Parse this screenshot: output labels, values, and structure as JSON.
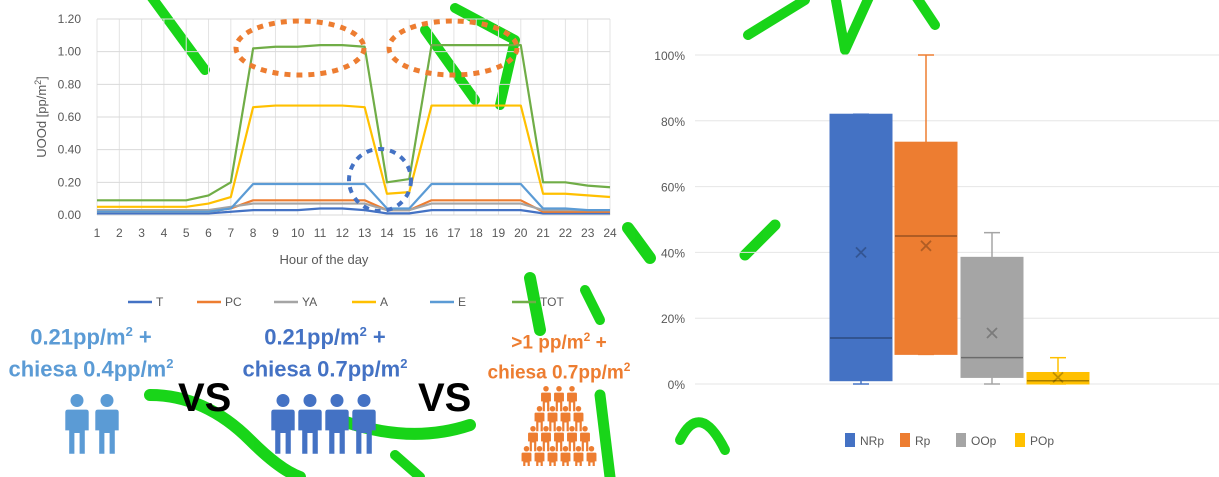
{
  "chart_data": [
    {
      "type": "line",
      "title": "",
      "xlabel": "Hour of the day",
      "ylabel": "UOOd [pp/m²]",
      "ylabel_parts": [
        "UOOd [pp/m",
        "2",
        "]"
      ],
      "ylim": [
        0,
        1.2
      ],
      "yticks": [
        "0.00",
        "0.20",
        "0.40",
        "0.60",
        "0.80",
        "1.00",
        "1.20"
      ],
      "x": [
        1,
        2,
        3,
        4,
        5,
        6,
        7,
        8,
        9,
        10,
        11,
        12,
        13,
        14,
        15,
        16,
        17,
        18,
        19,
        20,
        21,
        22,
        23,
        24
      ],
      "grid": true,
      "legend_position": "bottom",
      "series": [
        {
          "name": "T",
          "color": "#4472c4",
          "values": [
            0.01,
            0.01,
            0.01,
            0.01,
            0.01,
            0.01,
            0.02,
            0.03,
            0.03,
            0.03,
            0.04,
            0.04,
            0.03,
            0.01,
            0.01,
            0.03,
            0.03,
            0.03,
            0.03,
            0.03,
            0.01,
            0.01,
            0.01,
            0.01
          ]
        },
        {
          "name": "PC",
          "color": "#ed7d31",
          "values": [
            0.02,
            0.02,
            0.02,
            0.02,
            0.02,
            0.02,
            0.04,
            0.09,
            0.09,
            0.09,
            0.09,
            0.09,
            0.09,
            0.03,
            0.03,
            0.09,
            0.09,
            0.09,
            0.09,
            0.09,
            0.02,
            0.02,
            0.02,
            0.02
          ]
        },
        {
          "name": "YA",
          "color": "#a5a5a5",
          "values": [
            0.03,
            0.03,
            0.03,
            0.03,
            0.03,
            0.03,
            0.05,
            0.07,
            0.07,
            0.07,
            0.07,
            0.07,
            0.07,
            0.03,
            0.03,
            0.07,
            0.07,
            0.07,
            0.07,
            0.07,
            0.03,
            0.03,
            0.03,
            0.03
          ]
        },
        {
          "name": "A",
          "color": "#ffc000",
          "values": [
            0.05,
            0.05,
            0.05,
            0.05,
            0.05,
            0.07,
            0.11,
            0.66,
            0.67,
            0.67,
            0.67,
            0.67,
            0.66,
            0.13,
            0.14,
            0.67,
            0.67,
            0.67,
            0.67,
            0.67,
            0.13,
            0.13,
            0.12,
            0.11
          ]
        },
        {
          "name": "E",
          "color": "#5b9bd5",
          "values": [
            0.02,
            0.02,
            0.02,
            0.02,
            0.02,
            0.02,
            0.04,
            0.19,
            0.19,
            0.19,
            0.19,
            0.19,
            0.19,
            0.04,
            0.04,
            0.19,
            0.19,
            0.19,
            0.19,
            0.19,
            0.04,
            0.04,
            0.03,
            0.03
          ]
        },
        {
          "name": "TOT",
          "color": "#70ad47",
          "values": [
            0.09,
            0.09,
            0.09,
            0.09,
            0.09,
            0.12,
            0.2,
            1.02,
            1.03,
            1.03,
            1.04,
            1.04,
            1.03,
            0.2,
            0.22,
            1.04,
            1.04,
            1.04,
            1.04,
            1.04,
            0.2,
            0.2,
            0.18,
            0.17
          ]
        }
      ]
    },
    {
      "type": "box",
      "title": "",
      "ylim": [
        0,
        1
      ],
      "yticks": [
        "0%",
        "20%",
        "40%",
        "60%",
        "80%",
        "100%"
      ],
      "legend_position": "bottom",
      "series": [
        {
          "name": "NRp",
          "color": "#4472c4",
          "min": 0.0,
          "q1": 0.01,
          "median": 0.14,
          "q3": 0.82,
          "max": 0.82,
          "mean": 0.4
        },
        {
          "name": "Rp",
          "color": "#ed7d31",
          "min": 0.09,
          "q1": 0.09,
          "median": 0.45,
          "q3": 0.735,
          "max": 1.0,
          "mean": 0.42
        },
        {
          "name": "OOp",
          "color": "#a5a5a5",
          "min": 0.0,
          "q1": 0.02,
          "median": 0.08,
          "q3": 0.385,
          "max": 0.46,
          "mean": 0.155
        },
        {
          "name": "POp",
          "color": "#ffc000",
          "min": 0.0,
          "q1": 0.0,
          "median": 0.01,
          "q3": 0.035,
          "max": 0.08,
          "mean": 0.02
        }
      ]
    }
  ],
  "annotations": {
    "label1": {
      "line1": "0.21pp/m",
      "sup1": "2",
      "plus1": " +",
      "line2": "chiesa 0.4pp/m",
      "sup2": "2",
      "color": "#5b9bd5"
    },
    "label2": {
      "line1": "0.21pp/m",
      "sup1": "2",
      "plus1": " +",
      "line2": "chiesa 0.7pp/m",
      "sup2": "2",
      "color": "#4472c4"
    },
    "label3": {
      "line1": ">1 pp/m",
      "sup1": "2",
      "plus1": " +",
      "line2": "chiesa 0.7pp/m",
      "sup2": "2",
      "color": "#ed7d31"
    },
    "vs1": "VS",
    "vs2": "VS",
    "people_colors": [
      "#5b9bd5",
      "#4472c4",
      "#ed7d31"
    ]
  },
  "highlight_colors": {
    "peak": "#ed7d31",
    "dip": "#4472c4"
  },
  "watermark_color": "#00d000"
}
